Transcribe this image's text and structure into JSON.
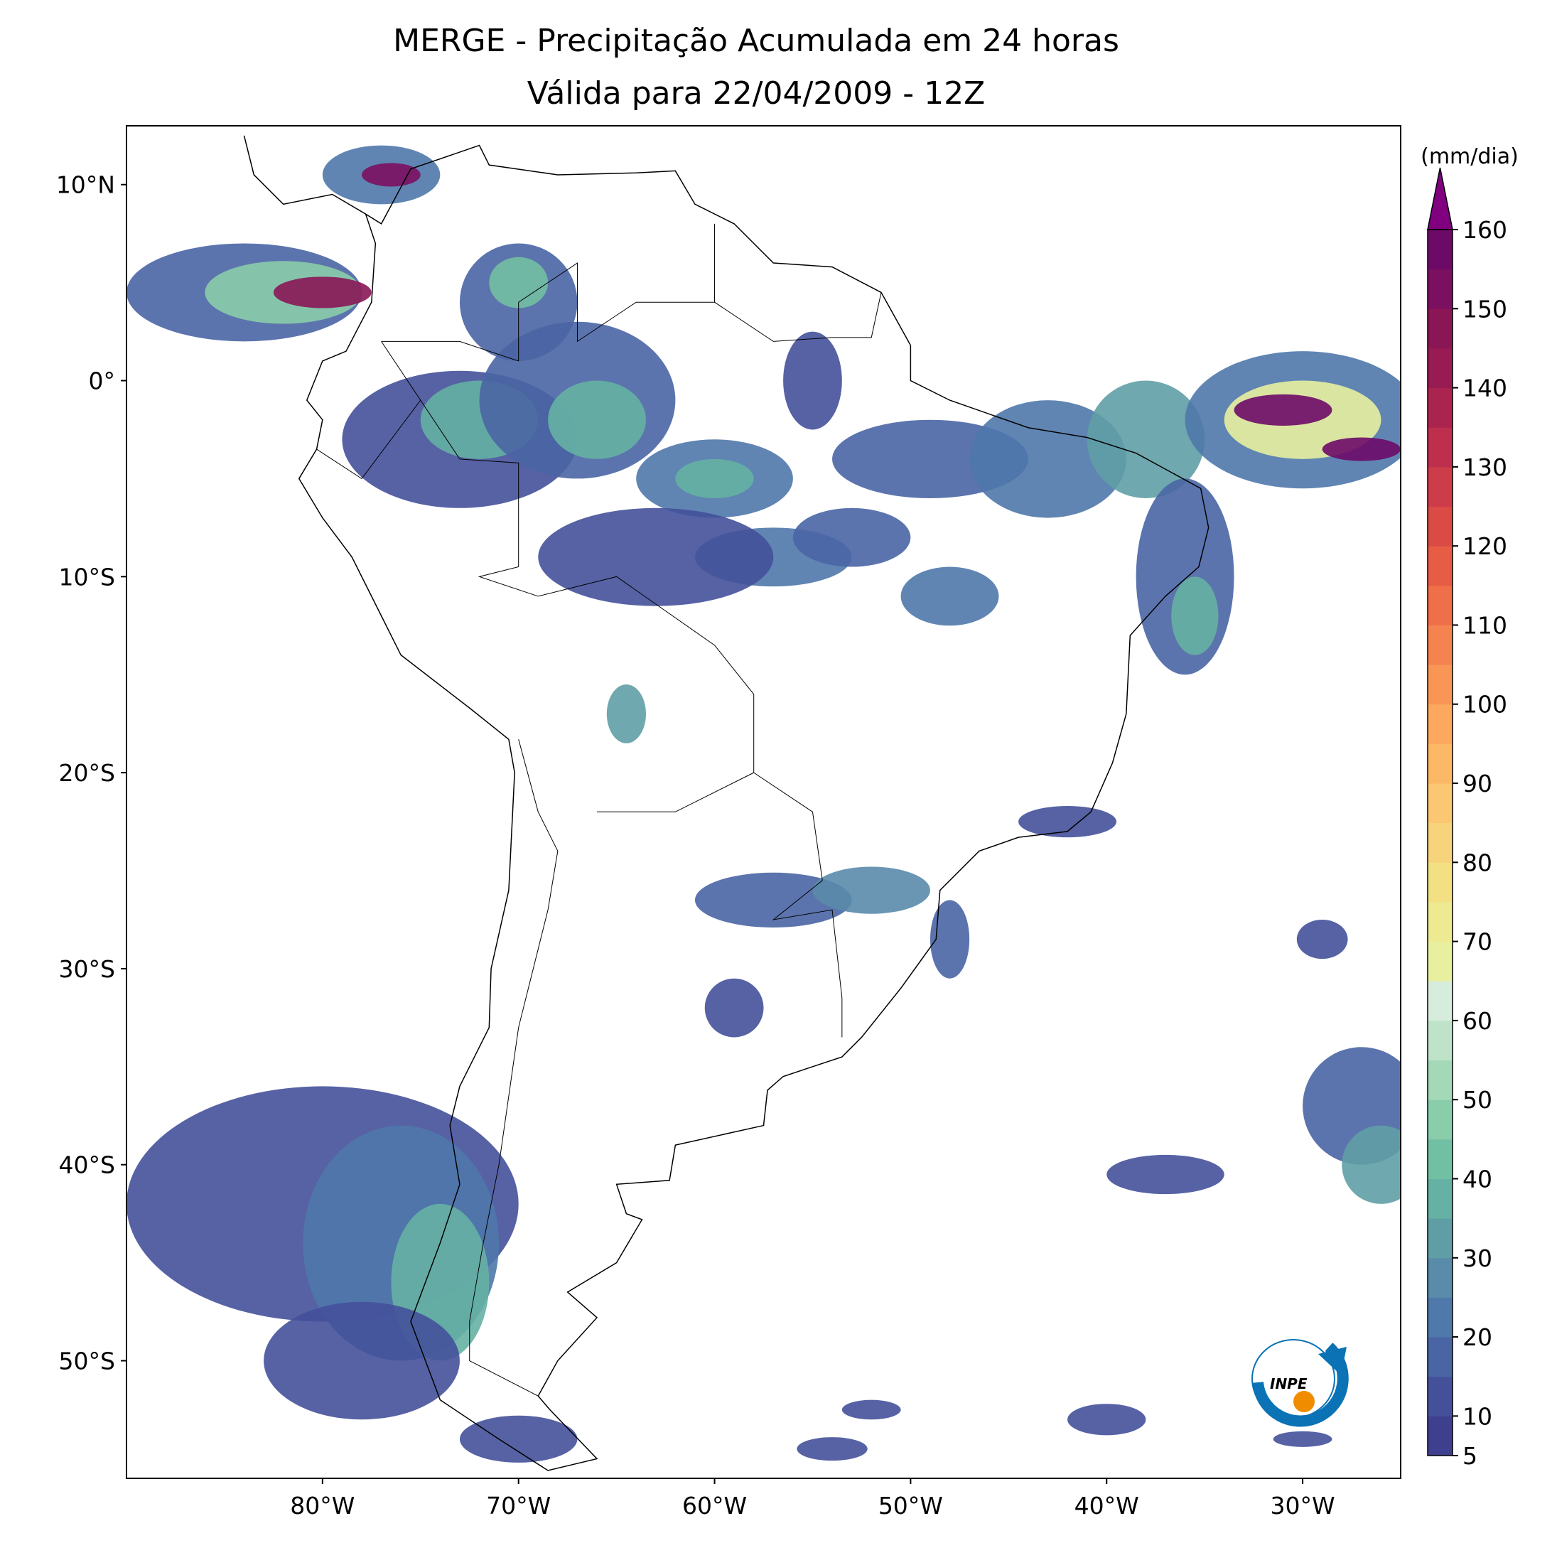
{
  "map": {
    "title": "MERGE - Precipitação Acumulada em 24 horas",
    "subtitle": "Válida para 22/04/2009 - 12Z",
    "xlim": [
      -90,
      -25
    ],
    "ylim": [
      -56,
      13
    ],
    "xticks": [
      {
        "value": -80,
        "label": "80°W"
      },
      {
        "value": -70,
        "label": "70°W"
      },
      {
        "value": -60,
        "label": "60°W"
      },
      {
        "value": -50,
        "label": "50°W"
      },
      {
        "value": -40,
        "label": "40°W"
      },
      {
        "value": -30,
        "label": "30°W"
      }
    ],
    "yticks": [
      {
        "value": 10,
        "label": "10°N"
      },
      {
        "value": 0,
        "label": "0°"
      },
      {
        "value": -10,
        "label": "10°S"
      },
      {
        "value": -20,
        "label": "20°S"
      },
      {
        "value": -30,
        "label": "30°S"
      },
      {
        "value": -40,
        "label": "40°S"
      },
      {
        "value": -50,
        "label": "50°S"
      }
    ],
    "colorbar": {
      "label": "(mm/dia)",
      "lim": [
        5,
        160
      ],
      "ticks": [
        5,
        10,
        20,
        30,
        40,
        50,
        60,
        70,
        80,
        90,
        100,
        110,
        120,
        130,
        140,
        150,
        160
      ],
      "colors": [
        "#3f3f8f",
        "#44519a",
        "#4a65a4",
        "#4f78ab",
        "#5a8bab",
        "#5f9ea5",
        "#65b1a3",
        "#72c0a3",
        "#8acdaa",
        "#a4d9b7",
        "#bfe3c8",
        "#d6ecdc",
        "#e8f0a0",
        "#eeea92",
        "#f3e083",
        "#f7d47b",
        "#fbc772",
        "#fcb867",
        "#fca85e",
        "#f99656",
        "#f4834f",
        "#ee6f48",
        "#e65c45",
        "#db4b46",
        "#cd3c49",
        "#bd2f4d",
        "#ab2450",
        "#981c53",
        "#8a1656",
        "#7c1060",
        "#6d0a68"
      ],
      "extend_color": "#800080"
    },
    "logo_text": "INPE"
  }
}
